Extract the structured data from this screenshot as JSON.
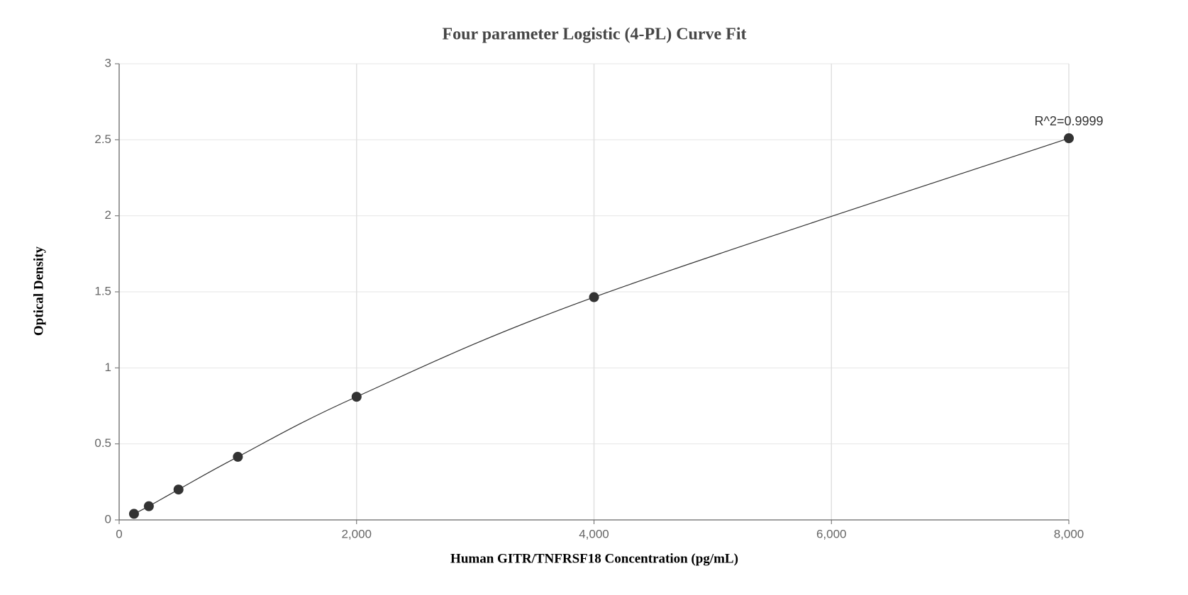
{
  "chart_data": {
    "type": "scatter",
    "title": "Four parameter Logistic (4-PL) Curve Fit",
    "x_label": "Human GITR/TNFRSF18 Concentration (pg/mL)",
    "y_label": "Optical Density",
    "series": [
      {
        "color": "#333333",
        "x": [
          125,
          250,
          500,
          1000,
          2000,
          4000,
          8000
        ],
        "values": [
          0.04,
          0.09,
          0.2,
          0.415,
          0.81,
          1.465,
          2.51
        ]
      }
    ],
    "annotation": "R^2=0.9999",
    "xlim": [
      0,
      8000
    ],
    "xticks": [
      0,
      {
        "value": 2000,
        "label": "2,000"
      },
      {
        "value": 4000,
        "label": "4,000"
      },
      {
        "value": 6000,
        "label": "6,000"
      },
      {
        "value": 8000,
        "label": "8,000"
      }
    ],
    "ylim": [
      0,
      3
    ],
    "yticks": [
      0,
      0.5,
      1,
      1.5,
      2,
      2.5,
      3
    ],
    "grid": true
  }
}
